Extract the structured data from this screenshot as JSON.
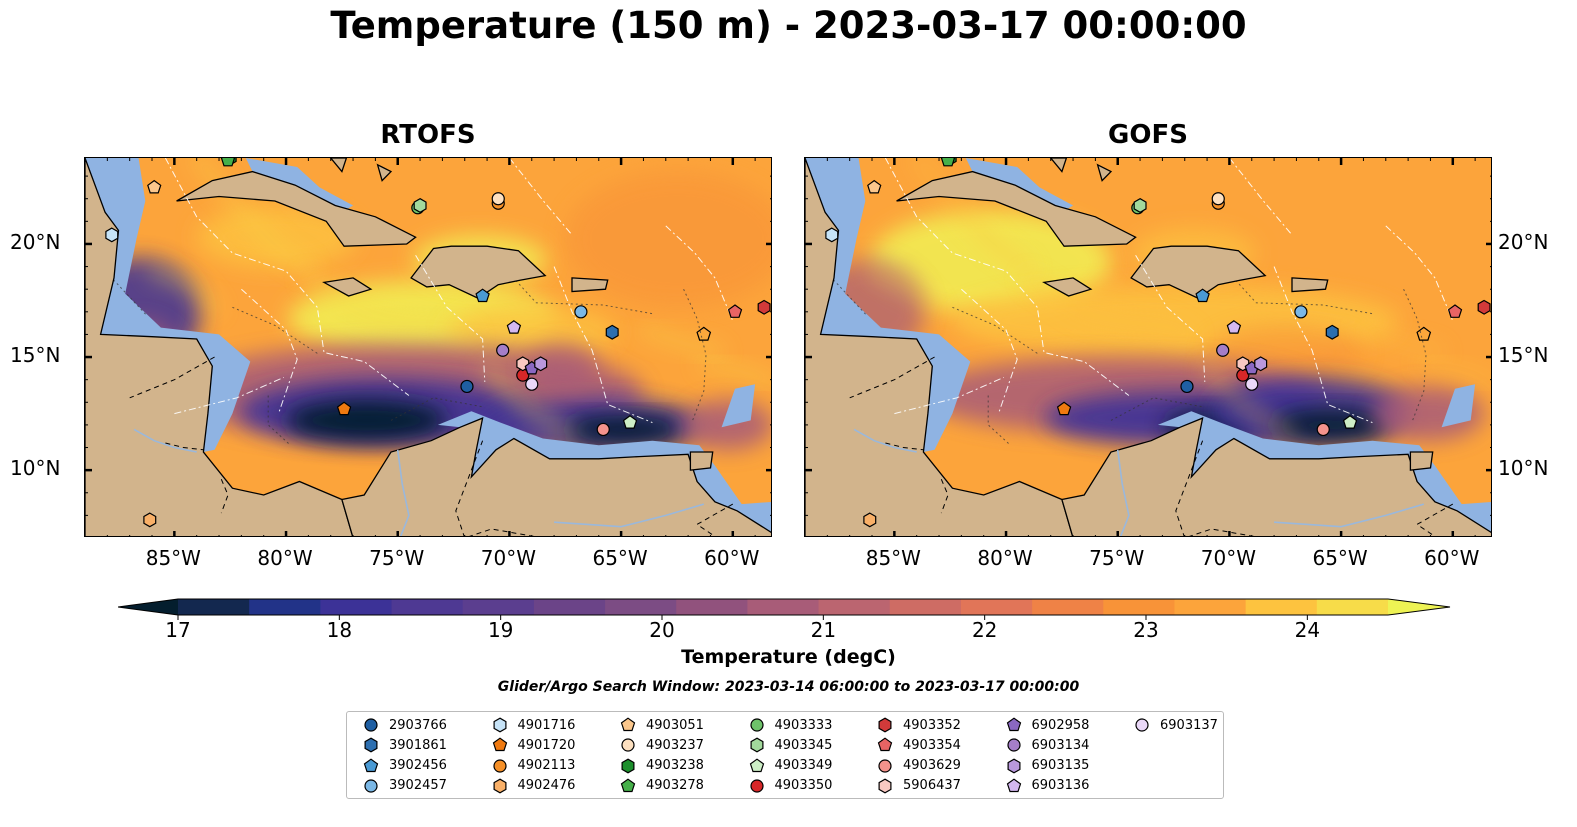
{
  "title": "Temperature (150 m) - 2023-03-17 00:00:00",
  "panels": [
    {
      "name": "RTOFS",
      "key": "rtofs"
    },
    {
      "name": "GOFS",
      "key": "gofs"
    }
  ],
  "colorbar": {
    "label": "Temperature (degC)",
    "min": 17,
    "max": 24.5,
    "step": 0.5,
    "ticks": [
      "17",
      "18",
      "19",
      "20",
      "21",
      "22",
      "23",
      "24"
    ],
    "colors": [
      "#041e2e",
      "#13284f",
      "#223388",
      "#3c3297",
      "#4e3993",
      "#5b3e8f",
      "#6b4488",
      "#7c4c84",
      "#91527d",
      "#a85c78",
      "#bb6570",
      "#ce6c64",
      "#e17558",
      "#ef8246",
      "#f89338",
      "#fca43b",
      "#fdc33f",
      "#f7dc49",
      "#eef354"
    ]
  },
  "search_window": "Glider/Argo Search Window: 2023-03-14 06:00:00 to 2023-03-17 00:00:00",
  "axes": {
    "lon_ticks": [
      "85°W",
      "80°W",
      "75°W",
      "70°W",
      "65°W",
      "60°W"
    ],
    "lon_values": [
      -85,
      -80,
      -75,
      -70,
      -65,
      -60
    ],
    "lat_ticks": [
      "20°N",
      "15°N",
      "10°N"
    ],
    "lat_values": [
      20,
      15,
      10
    ],
    "xlim": [
      -89,
      -58.2
    ],
    "ylim": [
      7,
      23.8
    ]
  },
  "palette": {
    "land": "#d2b48c",
    "shelf": "#8fb3e2",
    "warm": "#fca43b",
    "hot": "#f2ec52",
    "mid": "#a85c78",
    "cool": "#3c3297",
    "cold": "#041e2e"
  },
  "legend_items": [
    {
      "id": "2903766",
      "shape": "circle",
      "color": "#1f5fa3",
      "lon": -71.9,
      "lat": 13.7
    },
    {
      "id": "3901861",
      "shape": "hexagon",
      "color": "#2d6fb0",
      "lon": -65.4,
      "lat": 16.1
    },
    {
      "id": "3902456",
      "shape": "pentagon",
      "color": "#4a9ad4",
      "lon": -71.2,
      "lat": 17.7
    },
    {
      "id": "3902457",
      "shape": "circle",
      "color": "#7bb8e6",
      "lon": -66.8,
      "lat": 17.0
    },
    {
      "id": "4901716",
      "shape": "hexagon",
      "color": "#c6e3f7",
      "lon": -87.8,
      "lat": 20.4
    },
    {
      "id": "4901720",
      "shape": "pentagon",
      "color": "#f07a10",
      "lon": -77.4,
      "lat": 12.7
    },
    {
      "id": "4902113",
      "shape": "circle",
      "color": "#f59028",
      "lon": -70.5,
      "lat": 21.8
    },
    {
      "id": "4902476",
      "shape": "hexagon",
      "color": "#f9b068",
      "lon": -86.1,
      "lat": 7.8
    },
    {
      "id": "4903051",
      "shape": "pentagon",
      "color": "#fbc78c",
      "lon": -85.9,
      "lat": 22.5
    },
    {
      "id": "4903237",
      "shape": "circle",
      "color": "#fde0c0",
      "lon": -70.5,
      "lat": 22.0
    },
    {
      "id": "4903238",
      "shape": "hexagon",
      "color": "#1c8f2c",
      "lon": -82.5,
      "lat": 23.8
    },
    {
      "id": "4903278",
      "shape": "pentagon",
      "color": "#46b04a",
      "lon": -82.6,
      "lat": 23.7
    },
    {
      "id": "4903333",
      "shape": "circle",
      "color": "#6ec26a",
      "lon": -74.1,
      "lat": 21.6
    },
    {
      "id": "4903345",
      "shape": "hexagon",
      "color": "#a2d99c",
      "lon": -74.0,
      "lat": 21.7
    },
    {
      "id": "4903349",
      "shape": "pentagon",
      "color": "#cdeec6",
      "lon": -64.6,
      "lat": 12.1
    },
    {
      "id": "4903350",
      "shape": "circle",
      "color": "#d62728",
      "lon": -69.4,
      "lat": 14.2
    },
    {
      "id": "4903352",
      "shape": "hexagon",
      "color": "#d23a3a",
      "lon": -58.6,
      "lat": 17.2
    },
    {
      "id": "4903354",
      "shape": "pentagon",
      "color": "#e86464",
      "lon": -59.9,
      "lat": 17.0
    },
    {
      "id": "4903629",
      "shape": "circle",
      "color": "#f4938c",
      "lon": -65.8,
      "lat": 11.8
    },
    {
      "id": "5906437",
      "shape": "hexagon",
      "color": "#f9c9c2",
      "lon": -69.4,
      "lat": 14.7
    },
    {
      "id": "6902958",
      "shape": "pentagon",
      "color": "#8a68c2",
      "lon": -69.0,
      "lat": 14.5
    },
    {
      "id": "6903134",
      "shape": "circle",
      "color": "#a57ec8",
      "lon": -70.3,
      "lat": 15.3
    },
    {
      "id": "6903135",
      "shape": "hexagon",
      "color": "#b998dd",
      "lon": -68.6,
      "lat": 14.7
    },
    {
      "id": "6903136",
      "shape": "pentagon",
      "color": "#d4b8f0",
      "lon": -69.8,
      "lat": 16.3
    },
    {
      "id": "6903137",
      "shape": "circle",
      "color": "#ead8f8",
      "lon": -69.0,
      "lat": 13.8
    }
  ]
}
